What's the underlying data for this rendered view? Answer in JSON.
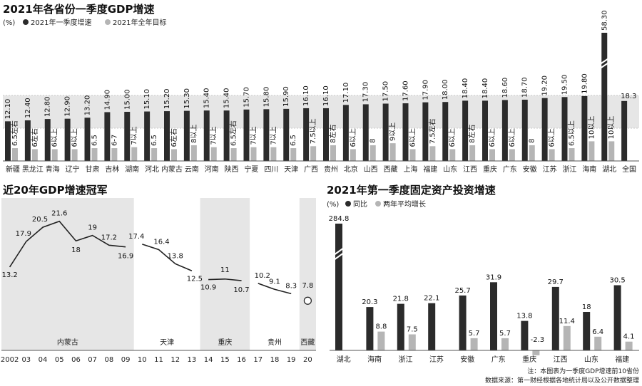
{
  "chart_data": [
    {
      "type": "bar",
      "title": "2021年各省份一季度GDP增速",
      "unit": "(%)",
      "legend": [
        "2021年一季度增速",
        "2021年全年目标"
      ],
      "legend_position": "top-left",
      "categories": [
        "新疆",
        "黑龙江",
        "青海",
        "辽宁",
        "甘肃",
        "吉林",
        "湖南",
        "河北",
        "内蒙古",
        "云南",
        "河南",
        "陕西",
        "宁夏",
        "四川",
        "天津",
        "广西",
        "贵州",
        "北京",
        "山西",
        "西藏",
        "上海",
        "福建",
        "山东",
        "江西",
        "重庆",
        "广东",
        "安徽",
        "江苏",
        "浙江",
        "海南",
        "湖北",
        "全国"
      ],
      "series": [
        {
          "name": "2021年一季度增速",
          "values": [
            12.1,
            12.4,
            12.8,
            12.9,
            13.2,
            14.9,
            15.0,
            15.1,
            15.2,
            15.3,
            15.4,
            15.4,
            15.7,
            15.8,
            15.9,
            16.1,
            16.1,
            17.1,
            17.3,
            17.5,
            17.6,
            17.9,
            18.0,
            18.4,
            18.4,
            18.6,
            18.7,
            19.2,
            19.5,
            19.8,
            58.3,
            18.3
          ],
          "labels": [
            "12.10",
            "12.40",
            "12.80",
            "12.90",
            "13.20",
            "14.90",
            "15.00",
            "15.10",
            "15.20",
            "15.30",
            "15.40",
            "15.40",
            "15.70",
            "15.80",
            "15.90",
            "16.10",
            "16.10",
            "17.10",
            "17.30",
            "17.50",
            "17.60",
            "17.90",
            "18.00",
            "18.40",
            "18.40",
            "18.60",
            "18.70",
            "19.20",
            "19.50",
            "19.80",
            "58.30",
            "18.3"
          ]
        },
        {
          "name": "2021年全年目标",
          "values": [
            6.5,
            6,
            6,
            6,
            6.5,
            6.5,
            7,
            6.5,
            6,
            8,
            7,
            6.5,
            7,
            7,
            6.5,
            7.5,
            8,
            6,
            8,
            9,
            6,
            7.5,
            6,
            8,
            6,
            6,
            8,
            6,
            6.5,
            10,
            10,
            null
          ],
          "labels": [
            "6.5左右",
            "6左右",
            "6以上",
            "6以上",
            "6.5",
            "6-7",
            "7以上",
            "6.5",
            "6左右",
            "8以上",
            "7以上",
            "6.5左右",
            "7以上",
            "7以上",
            "6.5",
            "7.5以上",
            "8左右",
            "6以上",
            "8",
            "9以上",
            "6以上",
            "7.5左右",
            "6以上",
            "8左右",
            "6以上",
            "6以上",
            "8",
            "6以上",
            "6.5以上",
            "10以上",
            "10以上",
            ""
          ]
        }
      ],
      "axis_break": "湖北"
    },
    {
      "type": "line",
      "title": "近20年GDP增速冠军",
      "unit": "(%)",
      "x": [
        "2002",
        "03",
        "04",
        "05",
        "06",
        "07",
        "08",
        "09",
        "10",
        "11",
        "12",
        "13",
        "14",
        "15",
        "16",
        "17",
        "18",
        "19",
        "20"
      ],
      "values": [
        13.2,
        17.9,
        20.5,
        21.6,
        18,
        19,
        17.2,
        16.9,
        17.4,
        16.4,
        13.8,
        12.5,
        10.9,
        11,
        10.7,
        10.2,
        9.1,
        8.3,
        7.8
      ],
      "labels": [
        "13.2",
        "17.9",
        "20.5",
        "21.6",
        "18",
        "19",
        "17.2",
        "16.9",
        "17.4",
        "16.4",
        "13.8",
        "12.5",
        "10.9",
        "11",
        "10.7",
        "10.2",
        "9.1",
        "8.3",
        "7.8"
      ],
      "segments": [
        {
          "name": "内蒙古",
          "start": 0,
          "end": 7,
          "shaded": true
        },
        {
          "name": "天津",
          "start": 8,
          "end": 11,
          "shaded": false
        },
        {
          "name": "重庆",
          "start": 12,
          "end": 14,
          "shaded": true
        },
        {
          "name": "贵州",
          "start": 15,
          "end": 17,
          "shaded": false
        },
        {
          "name": "西藏",
          "start": 18,
          "end": 18,
          "shaded": true
        }
      ]
    },
    {
      "type": "bar",
      "title": "2021年第一季度固定资产投资增速",
      "unit": "(%)",
      "legend": [
        "同比",
        "两年平均增长"
      ],
      "legend_position": "top-left",
      "categories": [
        "湖北",
        "海南",
        "浙江",
        "江苏",
        "安徽",
        "广东",
        "重庆",
        "江西",
        "山东",
        "福建"
      ],
      "series": [
        {
          "name": "同比",
          "values": [
            284.8,
            20.3,
            21.8,
            22.1,
            25.7,
            31.9,
            13.8,
            29.7,
            18,
            30.5
          ],
          "labels": [
            "284.8",
            "20.3",
            "21.8",
            "22.1",
            "25.7",
            "31.9",
            "13.8",
            "29.7",
            "18",
            "30.5"
          ]
        },
        {
          "name": "两年平均增长",
          "values": [
            null,
            8.8,
            7.5,
            null,
            5.7,
            5.7,
            -2.3,
            11.4,
            6.4,
            4.1
          ],
          "labels": [
            "",
            "8.8",
            "7.5",
            "",
            "5.7",
            "5.7",
            "-2.3",
            "11.4",
            "6.4",
            "4.1"
          ]
        }
      ],
      "axis_break": "湖北"
    }
  ],
  "notes": {
    "note": "注：本图表为一季度GDP增速前10省份",
    "source": "数据来源：第一财经根据各地统计局以及公开数据整理"
  },
  "colors": {
    "dark": "#2b2b2b",
    "light": "#b5b5b5",
    "band": "#e6e6e6"
  }
}
